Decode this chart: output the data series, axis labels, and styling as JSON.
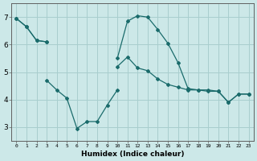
{
  "xlabel": "Humidex (Indice chaleur)",
  "background_color": "#cce8e8",
  "grid_color": "#a8cece",
  "line_color": "#1a6b6b",
  "xlim": [
    -0.5,
    23.5
  ],
  "ylim": [
    2.5,
    7.5
  ],
  "xticks": [
    0,
    1,
    2,
    3,
    4,
    5,
    6,
    7,
    8,
    9,
    10,
    11,
    12,
    13,
    14,
    15,
    16,
    17,
    18,
    19,
    20,
    21,
    22,
    23
  ],
  "yticks": [
    3,
    4,
    5,
    6,
    7
  ],
  "series": [
    {
      "x": [
        0,
        1,
        2,
        3,
        10,
        11,
        12,
        13,
        14,
        15,
        16,
        17,
        18,
        19,
        20,
        21,
        22,
        23
      ],
      "y": [
        6.95,
        6.65,
        6.15,
        6.1,
        5.5,
        6.85,
        7.05,
        7.0,
        6.55,
        6.05,
        5.35,
        4.4,
        4.35,
        4.35,
        4.3,
        3.9,
        4.2,
        4.2
      ]
    },
    {
      "x": [
        0,
        1,
        2,
        3,
        10,
        11,
        12,
        13,
        14,
        15,
        16,
        17,
        18,
        19,
        20,
        21,
        22,
        23
      ],
      "y": [
        6.95,
        6.65,
        6.15,
        6.1,
        5.2,
        5.55,
        5.15,
        5.05,
        4.75,
        4.55,
        4.45,
        4.35,
        4.35,
        4.3,
        4.3,
        3.9,
        4.2,
        4.2
      ]
    },
    {
      "x": [
        3,
        4,
        5,
        6,
        7,
        8,
        9,
        10
      ],
      "y": [
        4.7,
        4.35,
        4.05,
        2.95,
        3.2,
        3.2,
        3.8,
        4.35
      ]
    }
  ]
}
